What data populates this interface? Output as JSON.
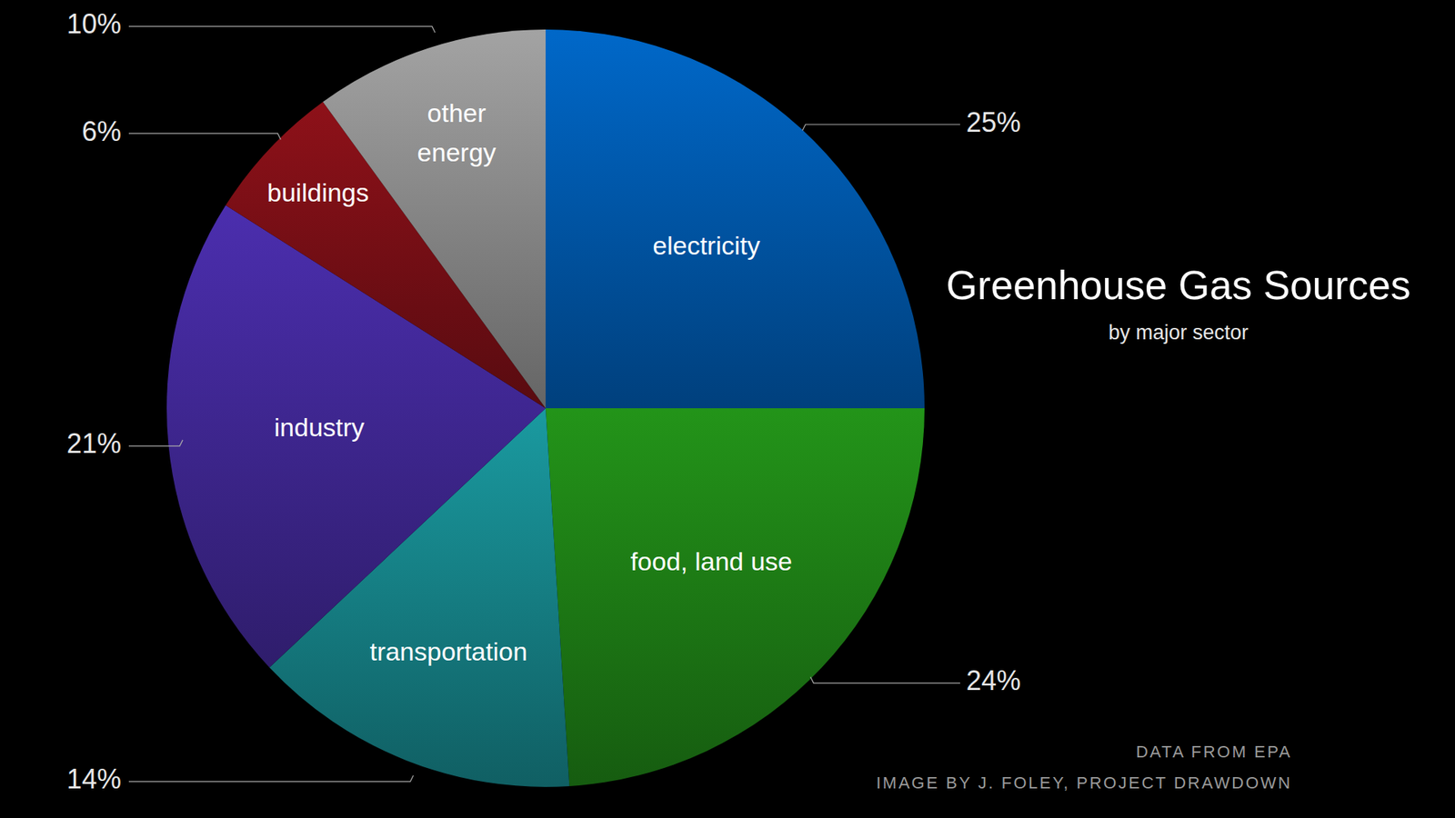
{
  "chart_data": {
    "type": "pie",
    "title": "Greenhouse Gas Sources",
    "subtitle": "by major sector",
    "categories": [
      "electricity",
      "food, land use",
      "transportation",
      "industry",
      "buildings",
      "other energy"
    ],
    "values": [
      25,
      24,
      14,
      21,
      6,
      10
    ],
    "value_labels": [
      "25%",
      "24%",
      "14%",
      "21%",
      "6%",
      "10%"
    ],
    "colors": [
      "#0068c9",
      "#239419",
      "#1a9aa0",
      "#4b2eae",
      "#8e1119",
      "#a3a3a3"
    ],
    "data_labels": true,
    "annotations": [
      "DATA FROM EPA",
      "IMAGE BY J. FOLEY, PROJECT DRAWDOWN"
    ]
  }
}
